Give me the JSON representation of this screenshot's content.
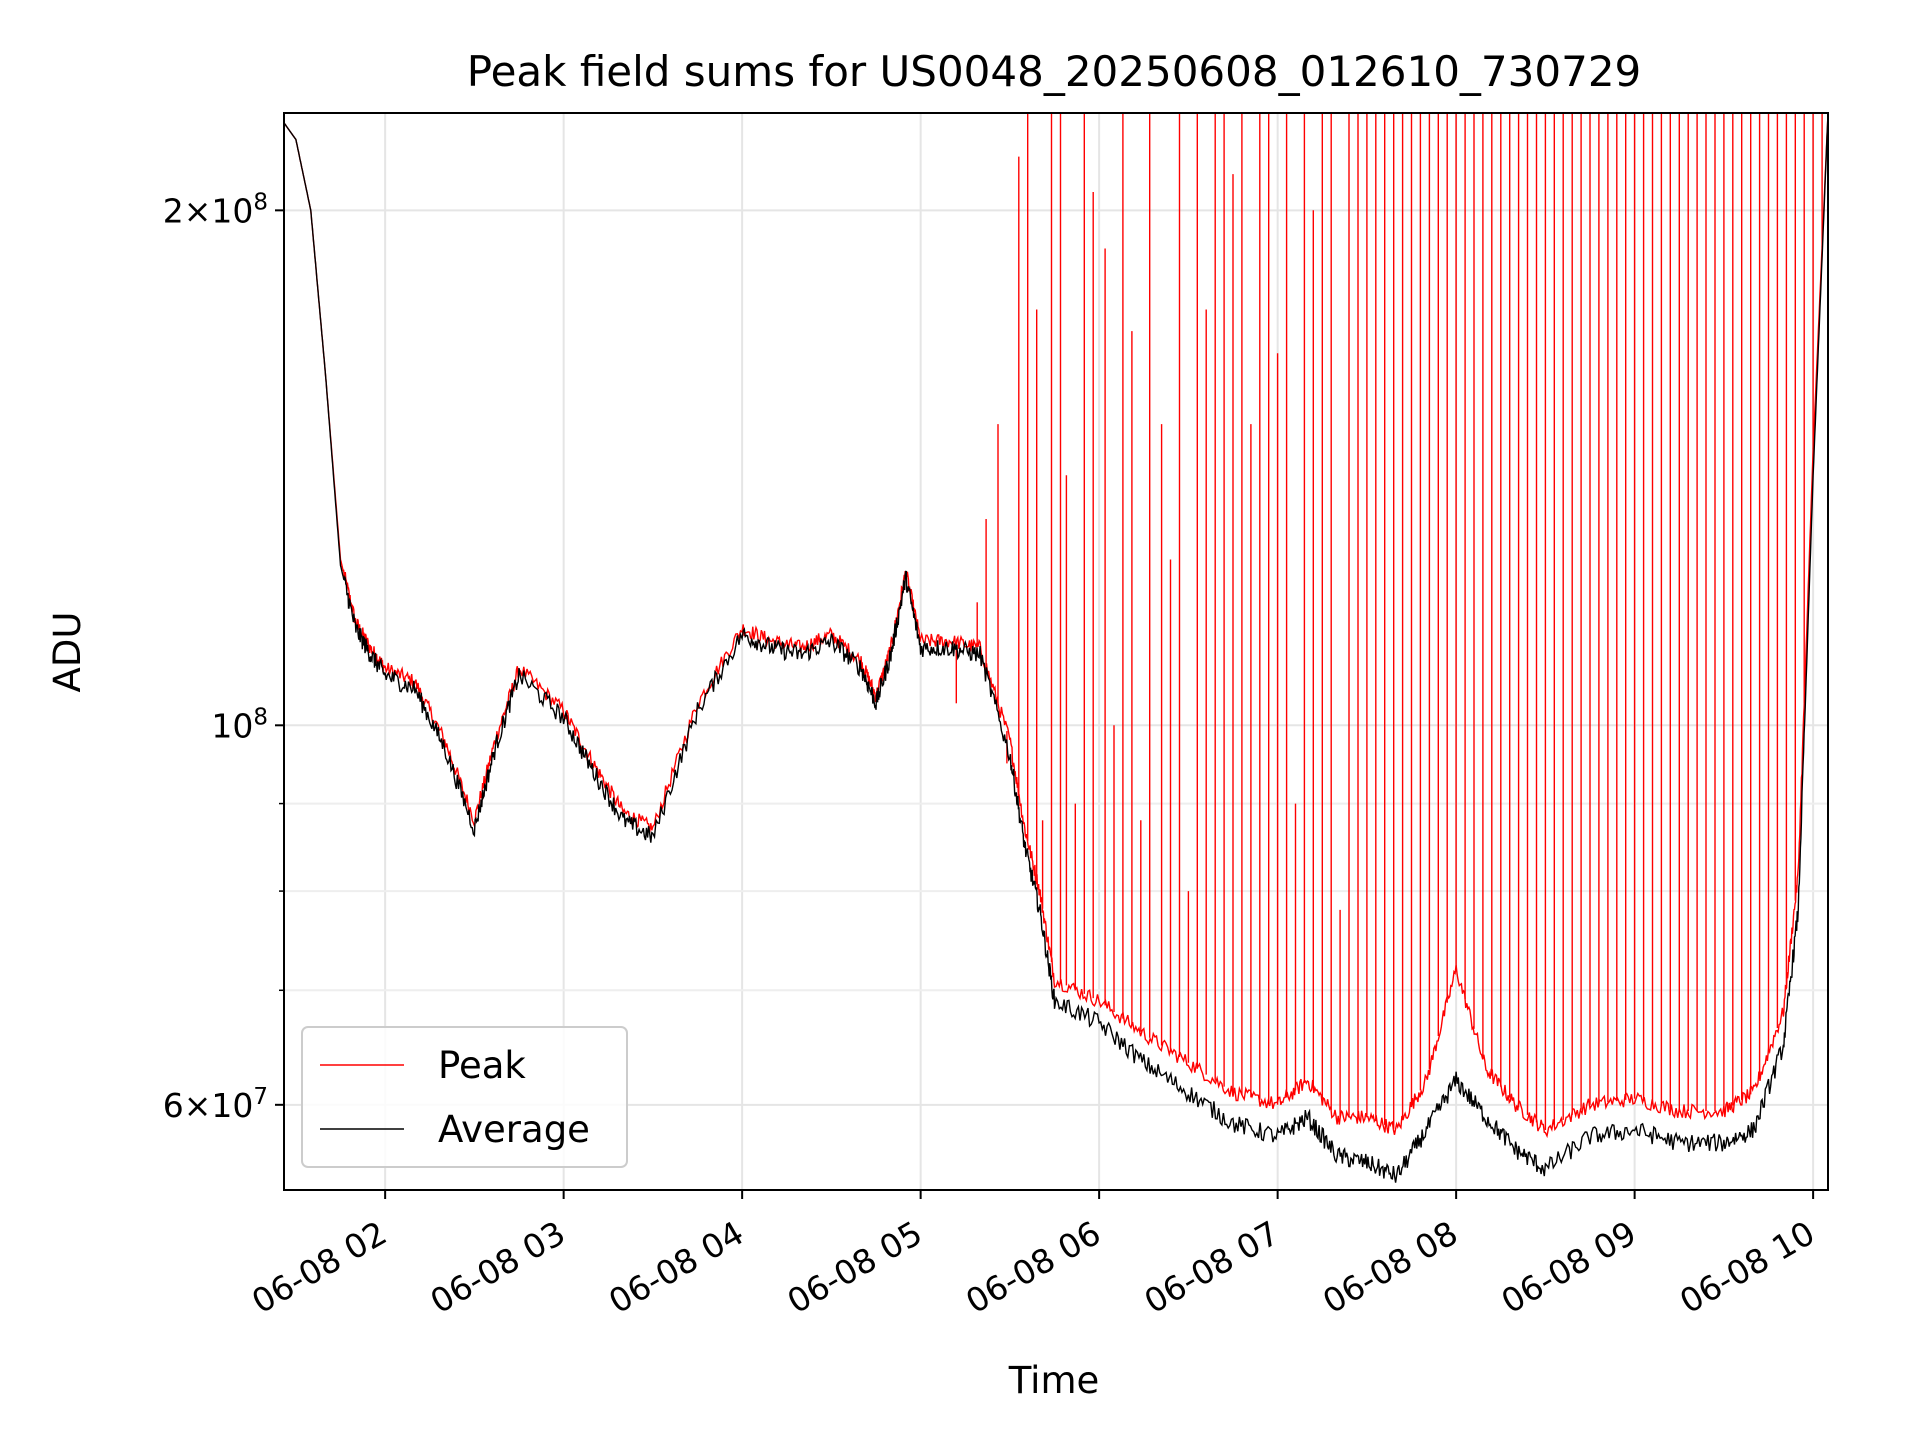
{
  "chart_data": {
    "type": "line",
    "title": "Peak field sums for US0048_20250608_012610_730729",
    "xlabel": "Time",
    "ylabel": "ADU",
    "yscale": "log",
    "xlim": [
      "2025-06-08 01:26",
      "2025-06-08 10:05"
    ],
    "ylim": [
      53500000,
      228000000
    ],
    "grid": true,
    "legend_position": "lower-left",
    "x_tick_labels": [
      "06-08 02",
      "06-08 03",
      "06-08 04",
      "06-08 05",
      "06-08 06",
      "06-08 07",
      "06-08 08",
      "06-08 09",
      "06-08 10"
    ],
    "y_tick_labels": [
      {
        "value": 200000000,
        "base": "2",
        "exp": "8",
        "mult": true
      },
      {
        "value": 100000000,
        "base": "10",
        "exp": "8",
        "mult": false
      },
      {
        "value": 60000000,
        "base": "6",
        "exp": "7",
        "mult": true
      }
    ],
    "y_minor_ticks": [
      70000000,
      80000000,
      90000000
    ],
    "series": [
      {
        "name": "Average",
        "color": "#000000",
        "x": [
          "2025-06-08 01:26",
          "2025-06-08 01:30",
          "2025-06-08 01:35",
          "2025-06-08 01:40",
          "2025-06-08 01:45",
          "2025-06-08 01:50",
          "2025-06-08 01:55",
          "2025-06-08 02:00",
          "2025-06-08 02:10",
          "2025-06-08 02:20",
          "2025-06-08 02:30",
          "2025-06-08 02:37",
          "2025-06-08 02:45",
          "2025-06-08 03:00",
          "2025-06-08 03:10",
          "2025-06-08 03:20",
          "2025-06-08 03:30",
          "2025-06-08 03:45",
          "2025-06-08 04:00",
          "2025-06-08 04:10",
          "2025-06-08 04:20",
          "2025-06-08 04:30",
          "2025-06-08 04:40",
          "2025-06-08 04:45",
          "2025-06-08 04:50",
          "2025-06-08 04:55",
          "2025-06-08 05:00",
          "2025-06-08 05:10",
          "2025-06-08 05:20",
          "2025-06-08 05:30",
          "2025-06-08 05:35",
          "2025-06-08 05:40",
          "2025-06-08 05:45",
          "2025-06-08 06:00",
          "2025-06-08 06:15",
          "2025-06-08 06:30",
          "2025-06-08 06:45",
          "2025-06-08 07:00",
          "2025-06-08 07:10",
          "2025-06-08 07:20",
          "2025-06-08 07:30",
          "2025-06-08 07:40",
          "2025-06-08 07:50",
          "2025-06-08 08:00",
          "2025-06-08 08:10",
          "2025-06-08 08:20",
          "2025-06-08 08:30",
          "2025-06-08 08:45",
          "2025-06-08 09:00",
          "2025-06-08 09:15",
          "2025-06-08 09:30",
          "2025-06-08 09:40",
          "2025-06-08 09:50",
          "2025-06-08 09:55",
          "2025-06-08 10:00",
          "2025-06-08 10:05"
        ],
        "values": [
          225000000,
          220000000,
          200000000,
          160000000,
          124000000,
          114000000,
          110000000,
          107000000,
          105000000,
          97000000,
          87000000,
          97000000,
          107000000,
          101000000,
          94000000,
          88000000,
          86000000,
          102000000,
          113000000,
          111000000,
          110000000,
          112000000,
          108000000,
          103000000,
          110000000,
          122000000,
          111000000,
          111000000,
          110000000,
          96000000,
          85000000,
          78000000,
          69000000,
          67000000,
          63500000,
          61000000,
          58500000,
          57500000,
          59000000,
          56000000,
          55500000,
          54500000,
          58000000,
          62000000,
          59000000,
          56500000,
          55000000,
          57500000,
          58000000,
          57000000,
          57000000,
          58000000,
          65000000,
          78000000,
          140000000,
          228000000
        ]
      },
      {
        "name": "Peak",
        "color": "#ff0000",
        "x": [
          "2025-06-08 01:26",
          "2025-06-08 01:30",
          "2025-06-08 01:35",
          "2025-06-08 01:40",
          "2025-06-08 01:45",
          "2025-06-08 01:50",
          "2025-06-08 01:55",
          "2025-06-08 02:00",
          "2025-06-08 02:10",
          "2025-06-08 02:20",
          "2025-06-08 02:30",
          "2025-06-08 02:37",
          "2025-06-08 02:45",
          "2025-06-08 03:00",
          "2025-06-08 03:10",
          "2025-06-08 03:20",
          "2025-06-08 03:30",
          "2025-06-08 03:45",
          "2025-06-08 04:00",
          "2025-06-08 04:10",
          "2025-06-08 04:20",
          "2025-06-08 04:30",
          "2025-06-08 04:40",
          "2025-06-08 04:45",
          "2025-06-08 04:50",
          "2025-06-08 04:55",
          "2025-06-08 05:00",
          "2025-06-08 05:10",
          "2025-06-08 05:20",
          "2025-06-08 05:30",
          "2025-06-08 05:35",
          "2025-06-08 05:40",
          "2025-06-08 05:45",
          "2025-06-08 06:00",
          "2025-06-08 06:15",
          "2025-06-08 06:30",
          "2025-06-08 06:45",
          "2025-06-08 07:00",
          "2025-06-08 07:10",
          "2025-06-08 07:20",
          "2025-06-08 07:30",
          "2025-06-08 07:40",
          "2025-06-08 07:50",
          "2025-06-08 08:00",
          "2025-06-08 08:10",
          "2025-06-08 08:20",
          "2025-06-08 08:30",
          "2025-06-08 08:45",
          "2025-06-08 09:00",
          "2025-06-08 09:15",
          "2025-06-08 09:30",
          "2025-06-08 09:40",
          "2025-06-08 09:50",
          "2025-06-08 09:55",
          "2025-06-08 10:00",
          "2025-06-08 10:05"
        ],
        "values": [
          225000000,
          220000000,
          200000000,
          160000000,
          125000000,
          115000000,
          111000000,
          108000000,
          106000000,
          98000000,
          88000000,
          98000000,
          108000000,
          102000000,
          95000000,
          89000000,
          87000000,
          103000000,
          114000000,
          112000000,
          111000000,
          113000000,
          109000000,
          104000000,
          111000000,
          123000000,
          112000000,
          112000000,
          111000000,
          98000000,
          87000000,
          80000000,
          71000000,
          69000000,
          66000000,
          63500000,
          61000000,
          60000000,
          62000000,
          59000000,
          59000000,
          58000000,
          62000000,
          72000000,
          63000000,
          60000000,
          58000000,
          60000000,
          60500000,
          59500000,
          59500000,
          61000000,
          68000000,
          82000000,
          145000000,
          228000000
        ]
      }
    ],
    "peak_spike_timestamps": [
      "05:12",
      "05:19",
      "05:22",
      "05:26",
      "05:29",
      "05:33",
      "05:36",
      "05:39",
      "05:41",
      "05:44",
      "05:47",
      "05:49",
      "05:52",
      "05:55",
      "05:58",
      "06:02",
      "06:05",
      "06:08",
      "06:11",
      "06:14",
      "06:17",
      "06:21",
      "06:24",
      "06:27",
      "06:30",
      "06:33",
      "06:36",
      "06:39",
      "06:42",
      "06:45",
      "06:48",
      "06:51",
      "06:54",
      "06:57",
      "07:00",
      "07:03",
      "07:06",
      "07:09",
      "07:12",
      "07:15",
      "07:18",
      "07:21",
      "07:24",
      "07:27",
      "07:30",
      "07:33",
      "07:36",
      "07:39",
      "07:42",
      "07:45",
      "07:48",
      "07:51",
      "07:54",
      "07:57",
      "08:00",
      "08:03",
      "08:06",
      "08:09",
      "08:12",
      "08:15",
      "08:18",
      "08:21",
      "08:24",
      "08:27",
      "08:30",
      "08:33",
      "08:36",
      "08:39",
      "08:42",
      "08:45",
      "08:48",
      "08:51",
      "08:54",
      "08:57",
      "09:00",
      "09:03",
      "09:06",
      "09:09",
      "09:12",
      "09:15",
      "09:18",
      "09:21",
      "09:24",
      "09:27",
      "09:30",
      "09:33",
      "09:36",
      "09:39",
      "09:42",
      "09:45",
      "09:48",
      "09:51",
      "09:54",
      "09:57",
      "10:00",
      "10:03"
    ],
    "peak_spike_values": [
      103000000,
      118000000,
      132000000,
      150000000,
      95000000,
      215000000,
      230000000,
      175000000,
      88000000,
      228000000,
      230000000,
      140000000,
      90000000,
      228000000,
      205000000,
      190000000,
      100000000,
      228000000,
      170000000,
      88000000,
      228000000,
      150000000,
      125000000,
      228000000,
      80000000,
      228000000,
      175000000,
      228000000,
      228000000,
      210000000,
      228000000,
      150000000,
      228000000,
      228000000,
      165000000,
      228000000,
      90000000,
      228000000,
      200000000,
      228000000,
      228000000,
      78000000,
      228000000,
      228000000,
      228000000,
      228000000,
      228000000,
      228000000,
      228000000,
      228000000,
      228000000,
      228000000,
      228000000,
      228000000,
      228000000,
      228000000,
      228000000,
      228000000,
      228000000,
      228000000,
      228000000,
      228000000,
      228000000,
      228000000,
      228000000,
      228000000,
      228000000,
      228000000,
      228000000,
      228000000,
      228000000,
      228000000,
      228000000,
      228000000,
      228000000,
      228000000,
      228000000,
      228000000,
      228000000,
      228000000,
      228000000,
      228000000,
      228000000,
      228000000,
      228000000,
      228000000,
      228000000,
      228000000,
      228000000,
      228000000,
      228000000,
      228000000,
      228000000,
      228000000,
      228000000,
      228000000
    ]
  }
}
